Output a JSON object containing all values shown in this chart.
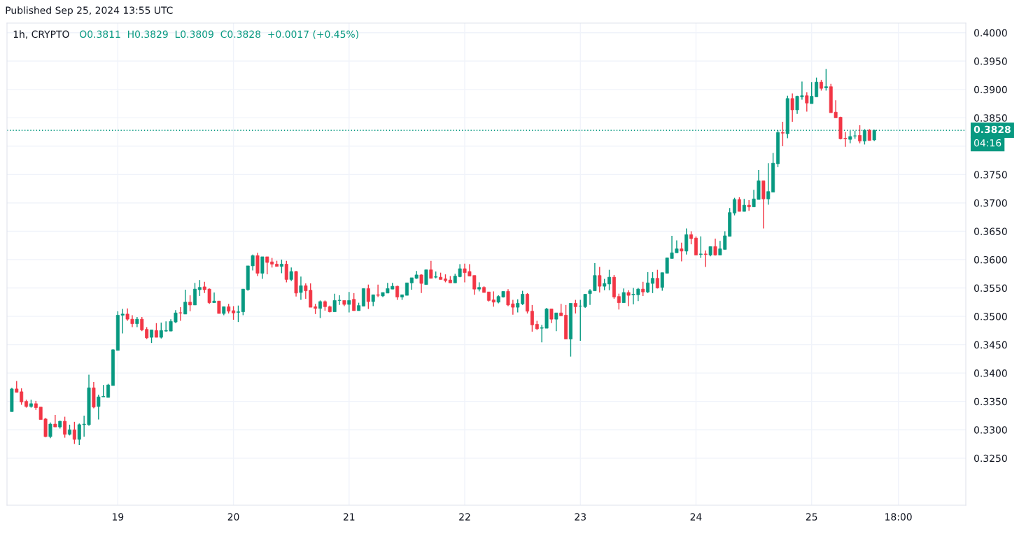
{
  "chart_data": {
    "type": "candlestick",
    "title": "1h, CRYPTO",
    "subtitle": "O0.3811  H0.3829  L0.3809  C0.3828  +0.0017 (+0.45%)",
    "annotations": [
      "Published Sep 25, 2024 13:55 UTC",
      "04:16"
    ],
    "x": [
      "2024-09-18T02:00",
      "2024-09-18T03:00",
      "2024-09-18T04:00",
      "2024-09-18T05:00",
      "2024-09-18T06:00",
      "2024-09-18T07:00",
      "2024-09-18T08:00",
      "2024-09-18T09:00",
      "2024-09-18T10:00",
      "2024-09-18T11:00",
      "2024-09-18T12:00",
      "2024-09-18T13:00",
      "2024-09-18T14:00",
      "2024-09-18T15:00",
      "2024-09-18T16:00",
      "2024-09-18T17:00",
      "2024-09-18T18:00",
      "2024-09-18T19:00",
      "2024-09-18T20:00",
      "2024-09-18T21:00",
      "2024-09-18T22:00",
      "2024-09-18T23:00",
      "2024-09-19T00:00",
      "2024-09-19T01:00",
      "2024-09-19T02:00",
      "2024-09-19T03:00",
      "2024-09-19T04:00",
      "2024-09-19T05:00",
      "2024-09-19T06:00",
      "2024-09-19T07:00",
      "2024-09-19T08:00",
      "2024-09-19T09:00",
      "2024-09-19T10:00",
      "2024-09-19T11:00",
      "2024-09-19T12:00",
      "2024-09-19T13:00",
      "2024-09-19T14:00",
      "2024-09-19T15:00",
      "2024-09-19T16:00",
      "2024-09-19T17:00",
      "2024-09-19T18:00",
      "2024-09-19T19:00",
      "2024-09-19T20:00",
      "2024-09-19T21:00",
      "2024-09-19T22:00",
      "2024-09-19T23:00",
      "2024-09-20T00:00",
      "2024-09-20T01:00",
      "2024-09-20T02:00",
      "2024-09-20T03:00",
      "2024-09-20T04:00",
      "2024-09-20T05:00",
      "2024-09-20T06:00",
      "2024-09-20T07:00",
      "2024-09-20T08:00",
      "2024-09-20T09:00",
      "2024-09-20T10:00",
      "2024-09-20T11:00",
      "2024-09-20T12:00",
      "2024-09-20T13:00",
      "2024-09-20T14:00",
      "2024-09-20T15:00",
      "2024-09-20T16:00",
      "2024-09-20T17:00",
      "2024-09-20T18:00",
      "2024-09-20T19:00",
      "2024-09-20T20:00",
      "2024-09-20T21:00",
      "2024-09-20T22:00",
      "2024-09-20T23:00",
      "2024-09-21T00:00",
      "2024-09-21T01:00",
      "2024-09-21T02:00",
      "2024-09-21T03:00",
      "2024-09-21T04:00",
      "2024-09-21T05:00",
      "2024-09-21T06:00",
      "2024-09-21T07:00",
      "2024-09-21T08:00",
      "2024-09-21T09:00",
      "2024-09-21T10:00",
      "2024-09-21T11:00",
      "2024-09-21T12:00",
      "2024-09-21T13:00",
      "2024-09-21T14:00",
      "2024-09-21T15:00",
      "2024-09-21T16:00",
      "2024-09-21T17:00",
      "2024-09-21T18:00",
      "2024-09-21T19:00",
      "2024-09-21T20:00",
      "2024-09-21T21:00",
      "2024-09-21T22:00",
      "2024-09-21T23:00",
      "2024-09-22T00:00",
      "2024-09-22T01:00",
      "2024-09-22T02:00",
      "2024-09-22T03:00",
      "2024-09-22T04:00",
      "2024-09-22T05:00",
      "2024-09-22T06:00",
      "2024-09-22T07:00",
      "2024-09-22T08:00",
      "2024-09-22T09:00",
      "2024-09-22T10:00",
      "2024-09-22T11:00",
      "2024-09-22T12:00",
      "2024-09-22T13:00",
      "2024-09-22T14:00",
      "2024-09-22T15:00",
      "2024-09-22T16:00",
      "2024-09-22T17:00",
      "2024-09-22T18:00",
      "2024-09-22T19:00",
      "2024-09-22T20:00",
      "2024-09-22T21:00",
      "2024-09-22T22:00",
      "2024-09-22T23:00",
      "2024-09-23T00:00",
      "2024-09-23T01:00",
      "2024-09-23T02:00",
      "2024-09-23T03:00",
      "2024-09-23T04:00",
      "2024-09-23T05:00",
      "2024-09-23T06:00",
      "2024-09-23T07:00",
      "2024-09-23T08:00",
      "2024-09-23T09:00",
      "2024-09-23T10:00",
      "2024-09-23T11:00",
      "2024-09-23T12:00",
      "2024-09-23T13:00",
      "2024-09-23T14:00",
      "2024-09-23T15:00",
      "2024-09-23T16:00",
      "2024-09-23T17:00",
      "2024-09-23T18:00",
      "2024-09-23T19:00",
      "2024-09-23T20:00",
      "2024-09-23T21:00",
      "2024-09-23T22:00",
      "2024-09-23T23:00",
      "2024-09-24T00:00",
      "2024-09-24T01:00",
      "2024-09-24T02:00",
      "2024-09-24T03:00",
      "2024-09-24T04:00",
      "2024-09-24T05:00",
      "2024-09-24T06:00",
      "2024-09-24T07:00",
      "2024-09-24T08:00",
      "2024-09-24T09:00",
      "2024-09-24T10:00",
      "2024-09-24T11:00",
      "2024-09-24T12:00",
      "2024-09-24T13:00",
      "2024-09-24T14:00",
      "2024-09-24T15:00",
      "2024-09-24T16:00",
      "2024-09-24T17:00",
      "2024-09-24T18:00",
      "2024-09-24T19:00",
      "2024-09-24T20:00",
      "2024-09-24T21:00",
      "2024-09-24T22:00",
      "2024-09-24T23:00",
      "2024-09-25T00:00",
      "2024-09-25T01:00",
      "2024-09-25T02:00",
      "2024-09-25T03:00",
      "2024-09-25T04:00",
      "2024-09-25T05:00",
      "2024-09-25T06:00",
      "2024-09-25T07:00",
      "2024-09-25T08:00",
      "2024-09-25T09:00",
      "2024-09-25T10:00",
      "2024-09-25T11:00",
      "2024-09-25T12:00",
      "2024-09-25T13:00"
    ],
    "ohlc": [
      [
        0.3332,
        0.3374,
        0.3332,
        0.3372
      ],
      [
        0.3372,
        0.3386,
        0.3366,
        0.3366
      ],
      [
        0.3367,
        0.3373,
        0.3344,
        0.3349
      ],
      [
        0.335,
        0.3353,
        0.3339,
        0.3341
      ],
      [
        0.3341,
        0.3353,
        0.3339,
        0.3346
      ],
      [
        0.3346,
        0.3351,
        0.3335,
        0.3339
      ],
      [
        0.334,
        0.334,
        0.3318,
        0.3318
      ],
      [
        0.3319,
        0.3321,
        0.3287,
        0.3288
      ],
      [
        0.3288,
        0.3313,
        0.3285,
        0.331
      ],
      [
        0.331,
        0.3326,
        0.3305,
        0.3305
      ],
      [
        0.3305,
        0.3316,
        0.3302,
        0.3315
      ],
      [
        0.3315,
        0.3323,
        0.3286,
        0.3292
      ],
      [
        0.3292,
        0.3309,
        0.329,
        0.33
      ],
      [
        0.33,
        0.3314,
        0.3275,
        0.3283
      ],
      [
        0.3283,
        0.3311,
        0.3273,
        0.3309
      ],
      [
        0.3309,
        0.3325,
        0.3288,
        0.331
      ],
      [
        0.3309,
        0.3397,
        0.3307,
        0.3374
      ],
      [
        0.3374,
        0.3384,
        0.3338,
        0.334
      ],
      [
        0.3341,
        0.3362,
        0.3318,
        0.3358
      ],
      [
        0.3358,
        0.3379,
        0.3358,
        0.3359
      ],
      [
        0.3357,
        0.3381,
        0.3357,
        0.3379
      ],
      [
        0.3378,
        0.3442,
        0.3378,
        0.3441
      ],
      [
        0.344,
        0.3509,
        0.344,
        0.3502
      ],
      [
        0.3502,
        0.3513,
        0.347,
        0.3504
      ],
      [
        0.3504,
        0.3514,
        0.3492,
        0.3495
      ],
      [
        0.3495,
        0.3502,
        0.3481,
        0.3487
      ],
      [
        0.3487,
        0.3499,
        0.3481,
        0.3495
      ],
      [
        0.3495,
        0.3499,
        0.3474,
        0.3476
      ],
      [
        0.3477,
        0.3481,
        0.346,
        0.3462
      ],
      [
        0.3463,
        0.3476,
        0.3453,
        0.3476
      ],
      [
        0.3475,
        0.3488,
        0.3463,
        0.3463
      ],
      [
        0.3463,
        0.3489,
        0.3461,
        0.3475
      ],
      [
        0.3474,
        0.3491,
        0.3473,
        0.3475
      ],
      [
        0.3474,
        0.3495,
        0.3474,
        0.3491
      ],
      [
        0.349,
        0.3511,
        0.3488,
        0.3506
      ],
      [
        0.3506,
        0.3516,
        0.3492,
        0.3506
      ],
      [
        0.3504,
        0.3547,
        0.3504,
        0.3525
      ],
      [
        0.3525,
        0.3537,
        0.3509,
        0.352
      ],
      [
        0.352,
        0.3559,
        0.352,
        0.3548
      ],
      [
        0.3547,
        0.3564,
        0.3536,
        0.3551
      ],
      [
        0.3552,
        0.3561,
        0.3541,
        0.3547
      ],
      [
        0.3548,
        0.3549,
        0.3522,
        0.3524
      ],
      [
        0.3524,
        0.3542,
        0.3524,
        0.3527
      ],
      [
        0.3527,
        0.3527,
        0.3505,
        0.3505
      ],
      [
        0.3505,
        0.3517,
        0.3502,
        0.3517
      ],
      [
        0.3517,
        0.3522,
        0.3505,
        0.3509
      ],
      [
        0.351,
        0.3518,
        0.3494,
        0.3506
      ],
      [
        0.3507,
        0.3519,
        0.349,
        0.3508
      ],
      [
        0.3508,
        0.3548,
        0.3502,
        0.3548
      ],
      [
        0.3547,
        0.3589,
        0.3545,
        0.3589
      ],
      [
        0.3589,
        0.3609,
        0.3581,
        0.3607
      ],
      [
        0.3607,
        0.3612,
        0.3571,
        0.3576
      ],
      [
        0.3576,
        0.3605,
        0.3566,
        0.3605
      ],
      [
        0.3605,
        0.3605,
        0.3574,
        0.3595
      ],
      [
        0.3596,
        0.3603,
        0.3586,
        0.3592
      ],
      [
        0.3592,
        0.3598,
        0.3588,
        0.3588
      ],
      [
        0.3588,
        0.36,
        0.3576,
        0.3592
      ],
      [
        0.3592,
        0.3598,
        0.356,
        0.3565
      ],
      [
        0.3565,
        0.3586,
        0.3562,
        0.3579
      ],
      [
        0.3579,
        0.358,
        0.3535,
        0.3541
      ],
      [
        0.3542,
        0.357,
        0.3529,
        0.3554
      ],
      [
        0.3554,
        0.3558,
        0.3531,
        0.3545
      ],
      [
        0.3546,
        0.3558,
        0.3516,
        0.3516
      ],
      [
        0.3517,
        0.3522,
        0.3504,
        0.3514
      ],
      [
        0.3514,
        0.3528,
        0.3497,
        0.3526
      ],
      [
        0.3526,
        0.3528,
        0.351,
        0.3517
      ],
      [
        0.3517,
        0.3519,
        0.3507,
        0.3508
      ],
      [
        0.3508,
        0.354,
        0.3508,
        0.3528
      ],
      [
        0.3528,
        0.3537,
        0.352,
        0.3528
      ],
      [
        0.3528,
        0.3528,
        0.3518,
        0.3521
      ],
      [
        0.3521,
        0.3543,
        0.3507,
        0.3528
      ],
      [
        0.353,
        0.3541,
        0.351,
        0.351
      ],
      [
        0.351,
        0.3524,
        0.351,
        0.3519
      ],
      [
        0.3518,
        0.3549,
        0.3518,
        0.3549
      ],
      [
        0.3549,
        0.3556,
        0.3513,
        0.3526
      ],
      [
        0.3526,
        0.3538,
        0.3518,
        0.3538
      ],
      [
        0.3538,
        0.3556,
        0.3534,
        0.3537
      ],
      [
        0.3536,
        0.3542,
        0.3534,
        0.3542
      ],
      [
        0.3541,
        0.3559,
        0.3541,
        0.3549
      ],
      [
        0.3548,
        0.3559,
        0.3548,
        0.3553
      ],
      [
        0.3553,
        0.3554,
        0.3529,
        0.3534
      ],
      [
        0.3534,
        0.3538,
        0.3529,
        0.3538
      ],
      [
        0.3537,
        0.3559,
        0.3537,
        0.3559
      ],
      [
        0.3559,
        0.3568,
        0.3547,
        0.3568
      ],
      [
        0.3567,
        0.358,
        0.3566,
        0.3573
      ],
      [
        0.3573,
        0.3574,
        0.3541,
        0.3558
      ],
      [
        0.3556,
        0.3582,
        0.3556,
        0.3582
      ],
      [
        0.3582,
        0.3598,
        0.3567,
        0.3567
      ],
      [
        0.3569,
        0.3579,
        0.3567,
        0.357
      ],
      [
        0.3569,
        0.3577,
        0.3565,
        0.3565
      ],
      [
        0.3566,
        0.3574,
        0.356,
        0.3563
      ],
      [
        0.3564,
        0.3571,
        0.3559,
        0.3559
      ],
      [
        0.3559,
        0.3575,
        0.3559,
        0.3571
      ],
      [
        0.357,
        0.3592,
        0.3569,
        0.3584
      ],
      [
        0.3584,
        0.3593,
        0.356,
        0.3577
      ],
      [
        0.3579,
        0.3592,
        0.3571,
        0.3571
      ],
      [
        0.3572,
        0.3572,
        0.3538,
        0.3548
      ],
      [
        0.3548,
        0.356,
        0.3544,
        0.3551
      ],
      [
        0.3551,
        0.3553,
        0.3542,
        0.3542
      ],
      [
        0.3543,
        0.3543,
        0.3526,
        0.3528
      ],
      [
        0.3529,
        0.3544,
        0.3517,
        0.3525
      ],
      [
        0.3525,
        0.3537,
        0.3523,
        0.3535
      ],
      [
        0.3534,
        0.3544,
        0.3533,
        0.3544
      ],
      [
        0.3544,
        0.3548,
        0.3518,
        0.352
      ],
      [
        0.3522,
        0.3529,
        0.3503,
        0.3516
      ],
      [
        0.3516,
        0.353,
        0.3507,
        0.3523
      ],
      [
        0.3522,
        0.3545,
        0.352,
        0.3539
      ],
      [
        0.3539,
        0.3541,
        0.3505,
        0.3509
      ],
      [
        0.3509,
        0.352,
        0.3473,
        0.3485
      ],
      [
        0.3486,
        0.3492,
        0.3476,
        0.3478
      ],
      [
        0.3479,
        0.3485,
        0.3454,
        0.348
      ],
      [
        0.3479,
        0.3515,
        0.3479,
        0.3513
      ],
      [
        0.3513,
        0.3513,
        0.3488,
        0.3495
      ],
      [
        0.3495,
        0.3506,
        0.3474,
        0.3506
      ],
      [
        0.3506,
        0.3522,
        0.3501,
        0.3501
      ],
      [
        0.3502,
        0.352,
        0.346,
        0.346
      ],
      [
        0.346,
        0.3523,
        0.3429,
        0.3523
      ],
      [
        0.3523,
        0.3529,
        0.3505,
        0.3517
      ],
      [
        0.3518,
        0.3529,
        0.3457,
        0.3518
      ],
      [
        0.3517,
        0.3539,
        0.3515,
        0.3539
      ],
      [
        0.354,
        0.3548,
        0.352,
        0.3545
      ],
      [
        0.3545,
        0.3594,
        0.3545,
        0.3572
      ],
      [
        0.3572,
        0.3587,
        0.3542,
        0.3553
      ],
      [
        0.3553,
        0.3566,
        0.3546,
        0.3558
      ],
      [
        0.3557,
        0.3582,
        0.3546,
        0.3569
      ],
      [
        0.3569,
        0.3573,
        0.3531,
        0.3534
      ],
      [
        0.3535,
        0.354,
        0.3512,
        0.3524
      ],
      [
        0.3524,
        0.3549,
        0.3524,
        0.3542
      ],
      [
        0.3542,
        0.3546,
        0.3518,
        0.3537
      ],
      [
        0.3538,
        0.355,
        0.3521,
        0.3539
      ],
      [
        0.3538,
        0.355,
        0.3527,
        0.3548
      ],
      [
        0.3548,
        0.3561,
        0.3536,
        0.3543
      ],
      [
        0.3543,
        0.3578,
        0.3541,
        0.3559
      ],
      [
        0.3558,
        0.3578,
        0.3541,
        0.3567
      ],
      [
        0.3567,
        0.3582,
        0.3549,
        0.355
      ],
      [
        0.3551,
        0.3577,
        0.3545,
        0.3577
      ],
      [
        0.3576,
        0.3603,
        0.3576,
        0.3603
      ],
      [
        0.3602,
        0.3642,
        0.3602,
        0.3612
      ],
      [
        0.3612,
        0.3634,
        0.3612,
        0.3619
      ],
      [
        0.3619,
        0.363,
        0.3597,
        0.3615
      ],
      [
        0.3615,
        0.3655,
        0.3609,
        0.3644
      ],
      [
        0.3644,
        0.365,
        0.3627,
        0.3637
      ],
      [
        0.3638,
        0.3641,
        0.3608,
        0.3608
      ],
      [
        0.3609,
        0.3641,
        0.3603,
        0.361
      ],
      [
        0.361,
        0.3616,
        0.3587,
        0.3609
      ],
      [
        0.3608,
        0.3623,
        0.3606,
        0.3623
      ],
      [
        0.3623,
        0.3637,
        0.3607,
        0.3608
      ],
      [
        0.3608,
        0.3633,
        0.3608,
        0.3619
      ],
      [
        0.3618,
        0.365,
        0.3618,
        0.3642
      ],
      [
        0.3641,
        0.3691,
        0.3641,
        0.3683
      ],
      [
        0.3682,
        0.3709,
        0.3678,
        0.3706
      ],
      [
        0.3706,
        0.371,
        0.3685,
        0.3685
      ],
      [
        0.3685,
        0.3707,
        0.3685,
        0.3696
      ],
      [
        0.3696,
        0.3705,
        0.3686,
        0.3693
      ],
      [
        0.3693,
        0.3723,
        0.3693,
        0.3707
      ],
      [
        0.3706,
        0.3758,
        0.3706,
        0.3739
      ],
      [
        0.3739,
        0.3739,
        0.3655,
        0.3707
      ],
      [
        0.3707,
        0.377,
        0.3697,
        0.372
      ],
      [
        0.3719,
        0.3788,
        0.3719,
        0.377
      ],
      [
        0.3769,
        0.3828,
        0.3763,
        0.3824
      ],
      [
        0.3824,
        0.3843,
        0.38,
        0.3823
      ],
      [
        0.3822,
        0.3889,
        0.3814,
        0.3884
      ],
      [
        0.3884,
        0.3893,
        0.3843,
        0.3864
      ],
      [
        0.3864,
        0.3889,
        0.3857,
        0.3888
      ],
      [
        0.3887,
        0.3914,
        0.3882,
        0.3889
      ],
      [
        0.3889,
        0.3895,
        0.3861,
        0.3876
      ],
      [
        0.3875,
        0.3913,
        0.3875,
        0.3888
      ],
      [
        0.3887,
        0.3921,
        0.3887,
        0.3913
      ],
      [
        0.3913,
        0.3917,
        0.3898,
        0.3902
      ],
      [
        0.3903,
        0.3936,
        0.3898,
        0.3905
      ],
      [
        0.3905,
        0.391,
        0.3859,
        0.3859
      ],
      [
        0.386,
        0.3881,
        0.385,
        0.385
      ],
      [
        0.3851,
        0.3852,
        0.3812,
        0.3813
      ],
      [
        0.3814,
        0.3825,
        0.3799,
        0.3813
      ],
      [
        0.3812,
        0.3827,
        0.3805,
        0.3817
      ],
      [
        0.3818,
        0.3827,
        0.3813,
        0.3818
      ],
      [
        0.3819,
        0.3837,
        0.3805,
        0.3809
      ],
      [
        0.3809,
        0.383,
        0.3803,
        0.3828
      ],
      [
        0.3828,
        0.383,
        0.381,
        0.381
      ],
      [
        0.3811,
        0.3829,
        0.3809,
        0.3828
      ]
    ],
    "colors": [
      "#089981",
      "#f23645",
      "#f23645",
      "#f23645",
      "#089981",
      "#f23645",
      "#f23645",
      "#f23645",
      "#089981",
      "#f23645",
      "#089981",
      "#f23645",
      "#089981",
      "#f23645",
      "#089981",
      "#089981",
      "#089981",
      "#f23645",
      "#089981",
      "#089981",
      "#089981",
      "#089981",
      "#089981",
      "#089981",
      "#f23645",
      "#f23645",
      "#089981",
      "#f23645",
      "#f23645",
      "#089981",
      "#f23645",
      "#089981",
      "#089981",
      "#089981",
      "#089981",
      "#f23645",
      "#089981",
      "#f23645",
      "#089981",
      "#089981",
      "#f23645",
      "#f23645",
      "#089981",
      "#f23645",
      "#089981",
      "#f23645",
      "#f23645",
      "#089981",
      "#089981",
      "#089981",
      "#089981",
      "#f23645",
      "#089981",
      "#f23645",
      "#f23645",
      "#f23645",
      "#089981",
      "#f23645",
      "#089981",
      "#f23645",
      "#089981",
      "#f23645",
      "#f23645",
      "#f23645",
      "#089981",
      "#f23645",
      "#f23645",
      "#089981",
      "#089981",
      "#f23645",
      "#089981",
      "#f23645",
      "#089981",
      "#089981",
      "#f23645",
      "#089981",
      "#f23645",
      "#089981",
      "#089981",
      "#089981",
      "#f23645",
      "#089981",
      "#089981",
      "#089981",
      "#089981",
      "#f23645",
      "#089981",
      "#f23645",
      "#089981",
      "#f23645",
      "#f23645",
      "#f23645",
      "#089981",
      "#089981",
      "#f23645",
      "#f23645",
      "#f23645",
      "#089981",
      "#f23645",
      "#f23645",
      "#f23645",
      "#089981",
      "#089981",
      "#f23645",
      "#f23645",
      "#089981",
      "#089981",
      "#f23645",
      "#f23645",
      "#f23645",
      "#089981",
      "#089981",
      "#f23645",
      "#089981",
      "#f23645",
      "#f23645",
      "#089981",
      "#f23645",
      "#089981",
      "#089981",
      "#089981",
      "#089981",
      "#f23645",
      "#089981",
      "#089981",
      "#f23645",
      "#f23645",
      "#089981",
      "#f23645",
      "#089981",
      "#089981",
      "#f23645",
      "#089981",
      "#089981",
      "#f23645",
      "#089981",
      "#089981",
      "#089981",
      "#089981",
      "#f23645",
      "#089981",
      "#f23645",
      "#f23645",
      "#089981",
      "#f23645",
      "#089981",
      "#f23645",
      "#089981",
      "#089981",
      "#089981",
      "#089981",
      "#f23645",
      "#089981",
      "#f23645",
      "#089981",
      "#089981",
      "#f23645",
      "#089981",
      "#089981",
      "#089981",
      "#f23645",
      "#089981",
      "#f23645",
      "#089981",
      "#089981",
      "#f23645",
      "#089981",
      "#089981",
      "#f23645",
      "#089981",
      "#f23645",
      "#f23645",
      "#f23645",
      "#f23645",
      "#089981",
      "#089981",
      "#f23645",
      "#089981",
      "#f23645",
      "#089981"
    ],
    "xlim": [
      "2024-09-18T01:00",
      "2024-09-26T08:00"
    ],
    "xticks": [
      {
        "value": "2024-09-19",
        "label": "19"
      },
      {
        "value": "2024-09-20",
        "label": "20"
      },
      {
        "value": "2024-09-21",
        "label": "21"
      },
      {
        "value": "2024-09-22",
        "label": "22"
      },
      {
        "value": "2024-09-23",
        "label": "23"
      },
      {
        "value": "2024-09-24",
        "label": "24"
      },
      {
        "value": "2024-09-25",
        "label": "25"
      },
      {
        "value": "2024-09-25T18:00",
        "label": "18:00"
      }
    ],
    "ylim": [
      0.3167,
      0.4017
    ],
    "yticks": [
      {
        "value": 0.325,
        "label": "0.3250"
      },
      {
        "value": 0.33,
        "label": "0.3300"
      },
      {
        "value": 0.335,
        "label": "0.3350"
      },
      {
        "value": 0.34,
        "label": "0.3400"
      },
      {
        "value": 0.345,
        "label": "0.3450"
      },
      {
        "value": 0.35,
        "label": "0.3500"
      },
      {
        "value": 0.355,
        "label": "0.3550"
      },
      {
        "value": 0.36,
        "label": "0.3600"
      },
      {
        "value": 0.365,
        "label": "0.3650"
      },
      {
        "value": 0.37,
        "label": "0.3700"
      },
      {
        "value": 0.375,
        "label": "0.3750"
      },
      {
        "value": 0.38,
        "label": null
      },
      {
        "value": 0.385,
        "label": "0.3850"
      },
      {
        "value": 0.39,
        "label": "0.3900"
      },
      {
        "value": 0.395,
        "label": "0.3950"
      },
      {
        "value": 0.4,
        "label": "0.4000"
      }
    ],
    "ref_lines": [
      {
        "axis": "y",
        "value": 0.3828,
        "label": "0.3828",
        "color": "#089981",
        "line_style": "dotted"
      }
    ],
    "grid": true,
    "legend": false
  }
}
